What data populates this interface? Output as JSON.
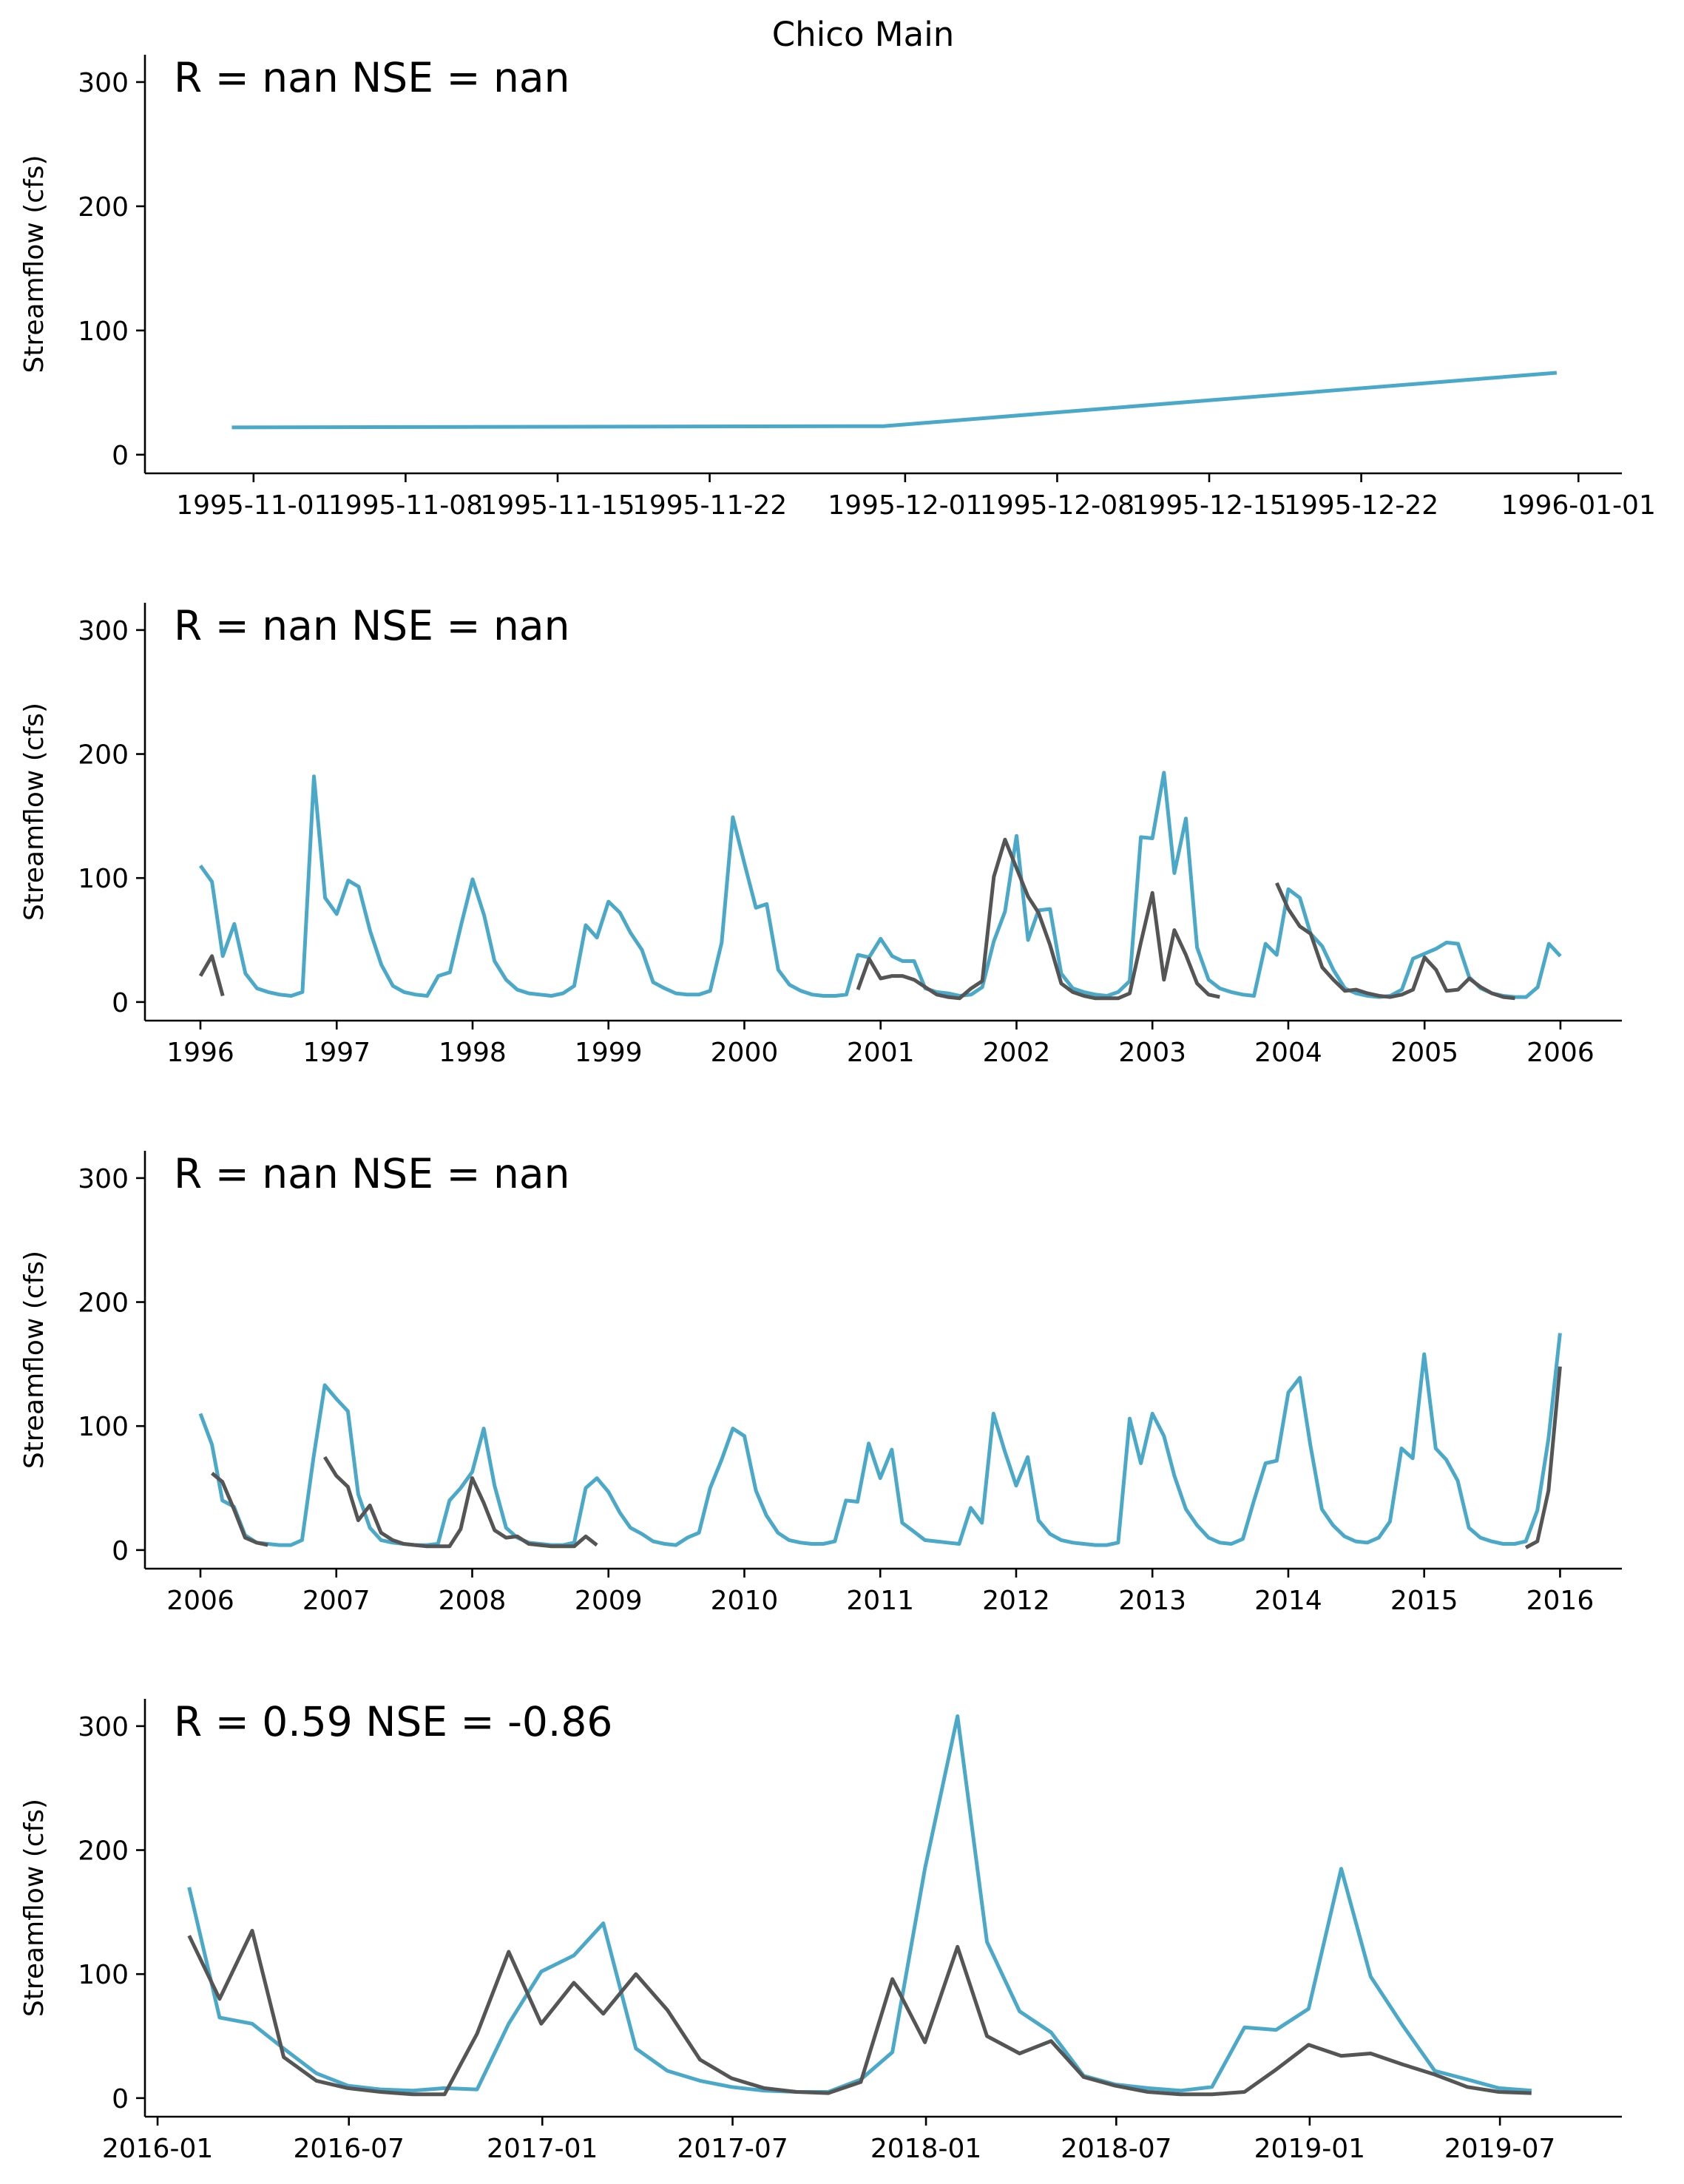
{
  "figure": {
    "title": "Chico Main"
  },
  "colors": {
    "simulated": "#4aa8c9",
    "observed": "#555555",
    "axis": "#000000"
  },
  "chart_data": [
    {
      "type": "line",
      "x_type": "date",
      "annotation": "R = nan  NSE = nan",
      "ylabel": "Streamflow (cfs)",
      "xlim": [
        "1995-10-27",
        "1996-01-03"
      ],
      "ylim": [
        -15,
        322
      ],
      "yticks": [
        0,
        100,
        200,
        300
      ],
      "xticks": [
        "1995-11-01",
        "1995-11-08",
        "1995-11-15",
        "1995-11-22",
        "1995-12-01",
        "1995-12-08",
        "1995-12-15",
        "1995-12-22",
        "1996-01-01"
      ],
      "xtick_labels": [
        "1995-11-01",
        "1995-11-08",
        "1995-11-15",
        "1995-11-22",
        "1995-12-01",
        "1995-12-08",
        "1995-12-15",
        "1995-12-22",
        "1996-01-01"
      ],
      "series": [
        {
          "color": "#4aa8c9",
          "x": [
            "1995-10-31",
            "1995-11-30",
            "1995-12-31"
          ],
          "y": [
            22,
            23,
            66
          ]
        }
      ]
    },
    {
      "type": "line",
      "x_type": "date",
      "annotation": "R = nan  NSE = nan",
      "ylabel": "Streamflow (cfs)",
      "xlim": [
        "1995-08-05",
        "2006-06-15"
      ],
      "ylim": [
        -15,
        322
      ],
      "yticks": [
        0,
        100,
        200,
        300
      ],
      "xticks": [
        "1996-01-01",
        "1997-01-01",
        "1998-01-01",
        "1999-01-01",
        "2000-01-01",
        "2001-01-01",
        "2002-01-01",
        "2003-01-01",
        "2004-01-01",
        "2005-01-01",
        "2006-01-01"
      ],
      "xtick_labels": [
        "1996",
        "1997",
        "1998",
        "1999",
        "2000",
        "2001",
        "2002",
        "2003",
        "2004",
        "2005",
        "2006"
      ],
      "series": [
        {
          "color": "#4aa8c9",
          "start": "1996-01",
          "values": [
            110,
            97,
            37,
            63,
            23,
            11,
            8,
            6,
            5,
            8,
            182,
            84,
            71,
            98,
            93,
            57,
            30,
            13,
            8,
            6,
            5,
            21,
            24,
            62,
            99,
            70,
            33,
            18,
            10,
            7,
            6,
            5,
            7,
            13,
            62,
            52,
            81,
            72,
            56,
            42,
            16,
            11,
            7,
            6,
            6,
            9,
            48,
            149,
            112,
            76,
            79,
            26,
            14,
            9,
            6,
            5,
            5,
            6,
            38,
            36,
            51,
            37,
            33,
            33,
            11,
            8,
            7,
            5,
            6,
            12,
            49,
            73,
            134,
            50,
            74,
            75,
            23,
            11,
            8,
            6,
            5,
            8,
            17,
            133,
            132,
            185,
            104,
            148,
            44,
            18,
            11,
            8,
            6,
            5,
            47,
            38,
            91,
            84,
            55,
            45,
            26,
            11,
            7,
            5,
            4,
            5,
            10,
            35,
            39,
            43,
            48,
            47,
            20,
            11,
            7,
            5,
            4,
            4,
            12,
            47,
            37
          ]
        },
        {
          "color": "#555555",
          "start": "1996-01",
          "values": [
            21,
            37,
            5
          ]
        },
        {
          "color": "#555555",
          "start": "2000-11",
          "values": [
            10,
            35,
            19,
            21,
            21,
            18,
            12,
            6,
            4,
            3,
            11,
            17,
            101,
            131,
            108,
            85,
            72,
            46,
            15,
            8,
            5,
            3,
            3,
            3,
            7,
            48,
            88,
            18,
            58,
            38,
            15,
            6,
            4
          ]
        },
        {
          "color": "#555555",
          "start": "2003-12",
          "values": [
            96,
            75,
            61,
            55,
            28,
            18,
            9,
            10,
            7,
            5,
            4,
            6,
            10,
            36,
            26,
            9,
            10,
            19,
            12,
            7,
            4,
            3
          ]
        }
      ]
    },
    {
      "type": "line",
      "x_type": "date",
      "annotation": "R = nan  NSE = nan",
      "ylabel": "Streamflow (cfs)",
      "xlim": [
        "2005-08-05",
        "2016-06-15"
      ],
      "ylim": [
        -15,
        322
      ],
      "yticks": [
        0,
        100,
        200,
        300
      ],
      "xticks": [
        "2006-01-01",
        "2007-01-01",
        "2008-01-01",
        "2009-01-01",
        "2010-01-01",
        "2011-01-01",
        "2012-01-01",
        "2013-01-01",
        "2014-01-01",
        "2015-01-01",
        "2016-01-01"
      ],
      "xtick_labels": [
        "2006",
        "2007",
        "2008",
        "2009",
        "2010",
        "2011",
        "2012",
        "2013",
        "2014",
        "2015",
        "2016"
      ],
      "series": [
        {
          "color": "#4aa8c9",
          "start": "2006-01",
          "values": [
            110,
            85,
            40,
            35,
            12,
            6,
            5,
            4,
            4,
            8,
            75,
            133,
            122,
            112,
            45,
            18,
            8,
            6,
            5,
            4,
            4,
            5,
            40,
            50,
            63,
            98,
            52,
            18,
            10,
            6,
            5,
            4,
            4,
            6,
            50,
            58,
            47,
            30,
            18,
            13,
            7,
            5,
            4,
            10,
            14,
            50,
            73,
            98,
            92,
            48,
            28,
            14,
            8,
            6,
            5,
            5,
            7,
            40,
            39,
            86,
            58,
            81,
            22,
            15,
            8,
            7,
            6,
            5,
            34,
            22,
            110,
            80,
            52,
            75,
            24,
            13,
            8,
            6,
            5,
            4,
            4,
            6,
            106,
            70,
            110,
            92,
            60,
            33,
            20,
            10,
            6,
            5,
            9,
            40,
            70,
            72,
            127,
            139,
            85,
            33,
            20,
            11,
            7,
            6,
            10,
            23,
            82,
            74,
            158,
            82,
            73,
            56,
            18,
            10,
            7,
            5,
            5,
            7,
            32,
            90,
            175
          ]
        },
        {
          "color": "#555555",
          "start": "2006-02",
          "values": [
            62,
            55,
            33,
            10,
            6,
            4
          ]
        },
        {
          "color": "#555555",
          "start": "2006-12",
          "values": [
            75,
            60,
            51,
            24,
            36,
            14,
            8,
            5,
            4,
            3,
            3,
            3,
            17,
            58,
            38,
            16,
            10,
            11,
            5,
            4,
            3,
            3,
            3,
            11,
            4
          ]
        },
        {
          "color": "#555555",
          "start": "2015-10",
          "values": [
            2,
            7,
            48,
            148
          ]
        }
      ]
    },
    {
      "type": "line",
      "x_type": "date",
      "annotation": "R = 0.59  NSE = -0.86",
      "ylabel": "Streamflow (cfs)",
      "xlim": [
        "2015-12-20",
        "2019-10-25"
      ],
      "ylim": [
        -15,
        322
      ],
      "yticks": [
        0,
        100,
        200,
        300
      ],
      "xticks": [
        "2016-01-01",
        "2016-07-01",
        "2017-01-01",
        "2017-07-01",
        "2018-01-01",
        "2018-07-01",
        "2019-01-01",
        "2019-07-01"
      ],
      "xtick_labels": [
        "2016-01",
        "2016-07",
        "2017-01",
        "2017-07",
        "2018-01",
        "2018-07",
        "2019-01",
        "2019-07"
      ],
      "series": [
        {
          "color": "#4aa8c9",
          "start": "2016-01",
          "day": 31,
          "values": [
            170,
            65,
            60,
            40,
            20,
            10,
            7,
            6,
            8,
            7,
            60,
            102,
            115,
            141,
            40,
            22,
            14,
            9,
            6,
            5,
            5,
            15,
            37,
            185,
            308,
            126,
            70,
            53,
            18,
            11,
            8,
            6,
            9,
            57,
            55,
            72,
            185,
            98,
            58,
            22,
            15,
            8,
            6
          ]
        },
        {
          "color": "#555555",
          "start": "2016-01",
          "day": 31,
          "values": [
            131,
            80,
            135,
            33,
            14,
            8,
            5,
            3,
            3,
            52,
            118,
            60,
            93,
            68,
            100,
            71,
            31,
            16,
            8,
            5,
            4,
            13,
            96,
            45,
            122,
            50,
            36,
            46,
            17,
            10,
            5,
            3,
            3,
            5,
            23,
            43,
            34,
            36,
            27,
            19,
            9,
            5,
            4
          ]
        }
      ]
    }
  ]
}
